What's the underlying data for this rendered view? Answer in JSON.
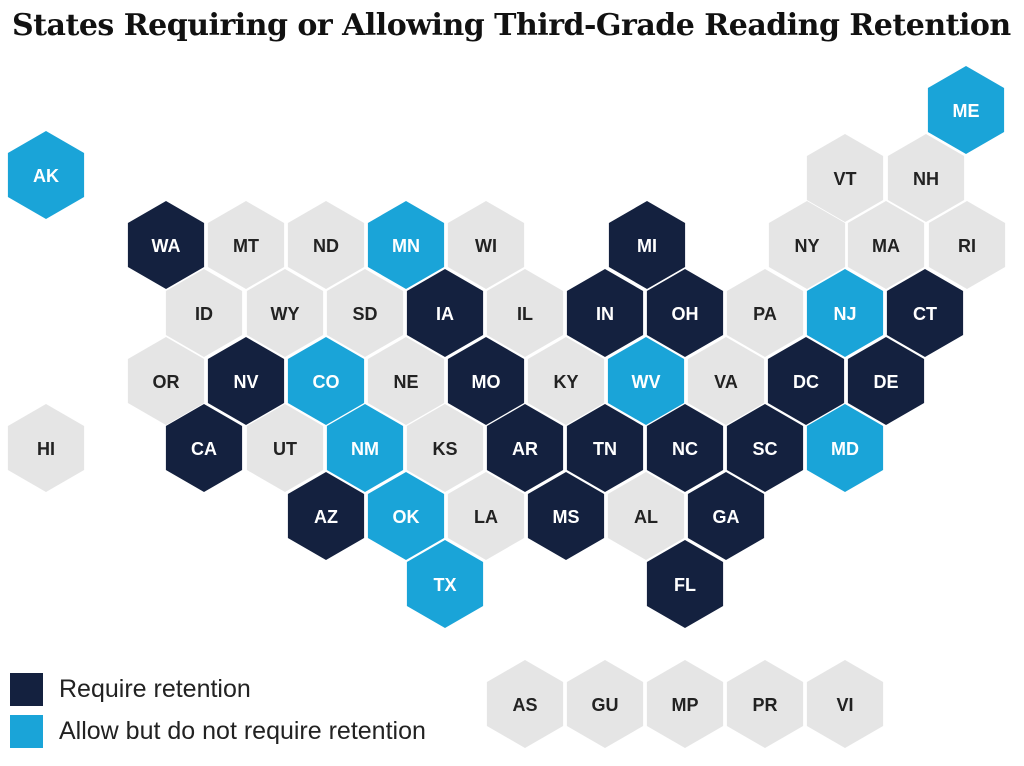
{
  "title": "States Requiring or Allowing Third-Grade Reading Retention",
  "colors": {
    "require": "#14213f",
    "allow": "#1aa4d8",
    "none": "#e5e5e5",
    "text_dark": "#222222",
    "text_light": "#ffffff"
  },
  "legend": [
    {
      "key": "require",
      "label": "Require retention"
    },
    {
      "key": "allow",
      "label": "Allow but do not require retention"
    }
  ],
  "hexes": [
    {
      "abbr": "ME",
      "status": "allow"
    },
    {
      "abbr": "AK",
      "status": "allow"
    },
    {
      "abbr": "VT",
      "status": "none"
    },
    {
      "abbr": "NH",
      "status": "none"
    },
    {
      "abbr": "WA",
      "status": "require"
    },
    {
      "abbr": "MT",
      "status": "none"
    },
    {
      "abbr": "ND",
      "status": "none"
    },
    {
      "abbr": "MN",
      "status": "allow"
    },
    {
      "abbr": "WI",
      "status": "none"
    },
    {
      "abbr": "MI",
      "status": "require"
    },
    {
      "abbr": "NY",
      "status": "none"
    },
    {
      "abbr": "MA",
      "status": "none"
    },
    {
      "abbr": "RI",
      "status": "none"
    },
    {
      "abbr": "ID",
      "status": "none"
    },
    {
      "abbr": "WY",
      "status": "none"
    },
    {
      "abbr": "SD",
      "status": "none"
    },
    {
      "abbr": "IA",
      "status": "require"
    },
    {
      "abbr": "IL",
      "status": "none"
    },
    {
      "abbr": "IN",
      "status": "require"
    },
    {
      "abbr": "OH",
      "status": "require"
    },
    {
      "abbr": "PA",
      "status": "none"
    },
    {
      "abbr": "NJ",
      "status": "allow"
    },
    {
      "abbr": "CT",
      "status": "require"
    },
    {
      "abbr": "OR",
      "status": "none"
    },
    {
      "abbr": "NV",
      "status": "require"
    },
    {
      "abbr": "CO",
      "status": "allow"
    },
    {
      "abbr": "NE",
      "status": "none"
    },
    {
      "abbr": "MO",
      "status": "require"
    },
    {
      "abbr": "KY",
      "status": "none"
    },
    {
      "abbr": "WV",
      "status": "allow"
    },
    {
      "abbr": "VA",
      "status": "none"
    },
    {
      "abbr": "DC",
      "status": "require"
    },
    {
      "abbr": "DE",
      "status": "require"
    },
    {
      "abbr": "HI",
      "status": "none"
    },
    {
      "abbr": "CA",
      "status": "require"
    },
    {
      "abbr": "UT",
      "status": "none"
    },
    {
      "abbr": "NM",
      "status": "allow"
    },
    {
      "abbr": "KS",
      "status": "none"
    },
    {
      "abbr": "AR",
      "status": "require"
    },
    {
      "abbr": "TN",
      "status": "require"
    },
    {
      "abbr": "NC",
      "status": "require"
    },
    {
      "abbr": "SC",
      "status": "require"
    },
    {
      "abbr": "MD",
      "status": "allow"
    },
    {
      "abbr": "AZ",
      "status": "require"
    },
    {
      "abbr": "OK",
      "status": "allow"
    },
    {
      "abbr": "LA",
      "status": "none"
    },
    {
      "abbr": "MS",
      "status": "require"
    },
    {
      "abbr": "AL",
      "status": "none"
    },
    {
      "abbr": "GA",
      "status": "require"
    },
    {
      "abbr": "TX",
      "status": "allow"
    },
    {
      "abbr": "FL",
      "status": "require"
    },
    {
      "abbr": "AS",
      "status": "none"
    },
    {
      "abbr": "GU",
      "status": "none"
    },
    {
      "abbr": "MP",
      "status": "none"
    },
    {
      "abbr": "PR",
      "status": "none"
    },
    {
      "abbr": "VI",
      "status": "none"
    }
  ]
}
